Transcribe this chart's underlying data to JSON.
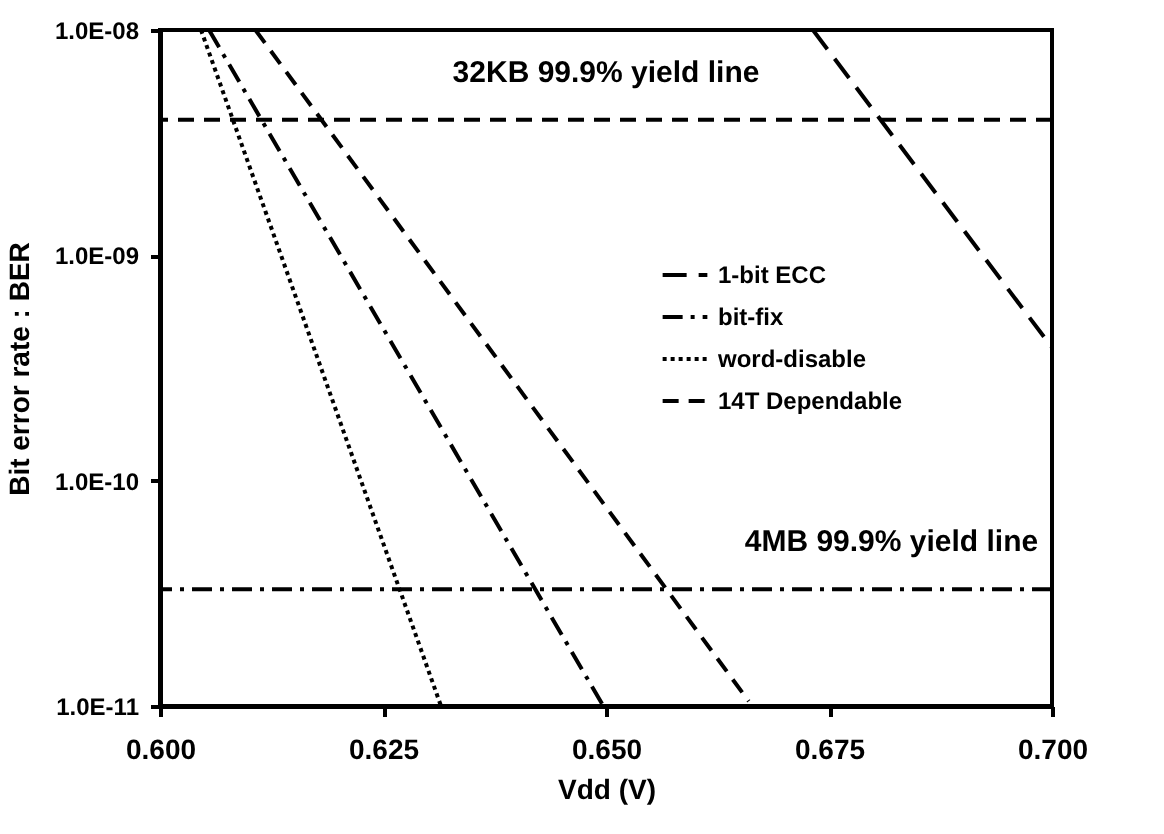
{
  "chart_data": {
    "type": "line",
    "xlabel": "Vdd (V)",
    "ylabel": "Bit error rate : BER",
    "log": "y",
    "xlim": [
      0.6,
      0.7
    ],
    "xticks": [
      {
        "value": 0.6,
        "label": "0.600"
      },
      {
        "value": 0.625,
        "label": "0.625"
      },
      {
        "value": 0.65,
        "label": "0.650"
      },
      {
        "value": 0.675,
        "label": "0.675"
      },
      {
        "value": 0.7,
        "label": "0.700"
      }
    ],
    "ylim": [
      1e-11,
      1e-08
    ],
    "yticks": [
      {
        "value": 1e-11,
        "label": "1.0E-11"
      },
      {
        "value": 1e-10,
        "label": "1.0E-10"
      },
      {
        "value": 1e-09,
        "label": "1.0E-09"
      },
      {
        "value": 1e-08,
        "label": "1.0E-08"
      }
    ],
    "grid": false,
    "legend": "right",
    "marker": "none",
    "series": [
      {
        "name": "1-bit ECC",
        "color": "#000000",
        "line_style": "longdash",
        "x": [
          0.6732,
          0.7
        ],
        "values": [
          1e-08,
          3.9e-10
        ]
      },
      {
        "name": "bit-fix",
        "color": "#000000",
        "line_style": "dashdot",
        "x": [
          0.6055,
          0.6497
        ],
        "values": [
          1e-08,
          1e-11
        ]
      },
      {
        "name": "word-disable",
        "color": "#000000",
        "line_style": "dotted",
        "x": [
          0.6046,
          0.6315
        ],
        "values": [
          1e-08,
          1e-11
        ]
      },
      {
        "name": "14T Dependable",
        "color": "#000000",
        "line_style": "dashed",
        "x": [
          0.6107,
          0.666
        ],
        "values": [
          1e-08,
          1.05e-11
        ]
      }
    ],
    "ref_lines": [
      {
        "axis": "y",
        "value": 4e-09,
        "label": "32KB 99.9% yield line",
        "line_style": "dashed",
        "color": "#000000"
      },
      {
        "axis": "y",
        "value": 3.3e-11,
        "label": "4MB 99.9% yield line",
        "line_style": "dashdot",
        "color": "#000000"
      }
    ]
  }
}
